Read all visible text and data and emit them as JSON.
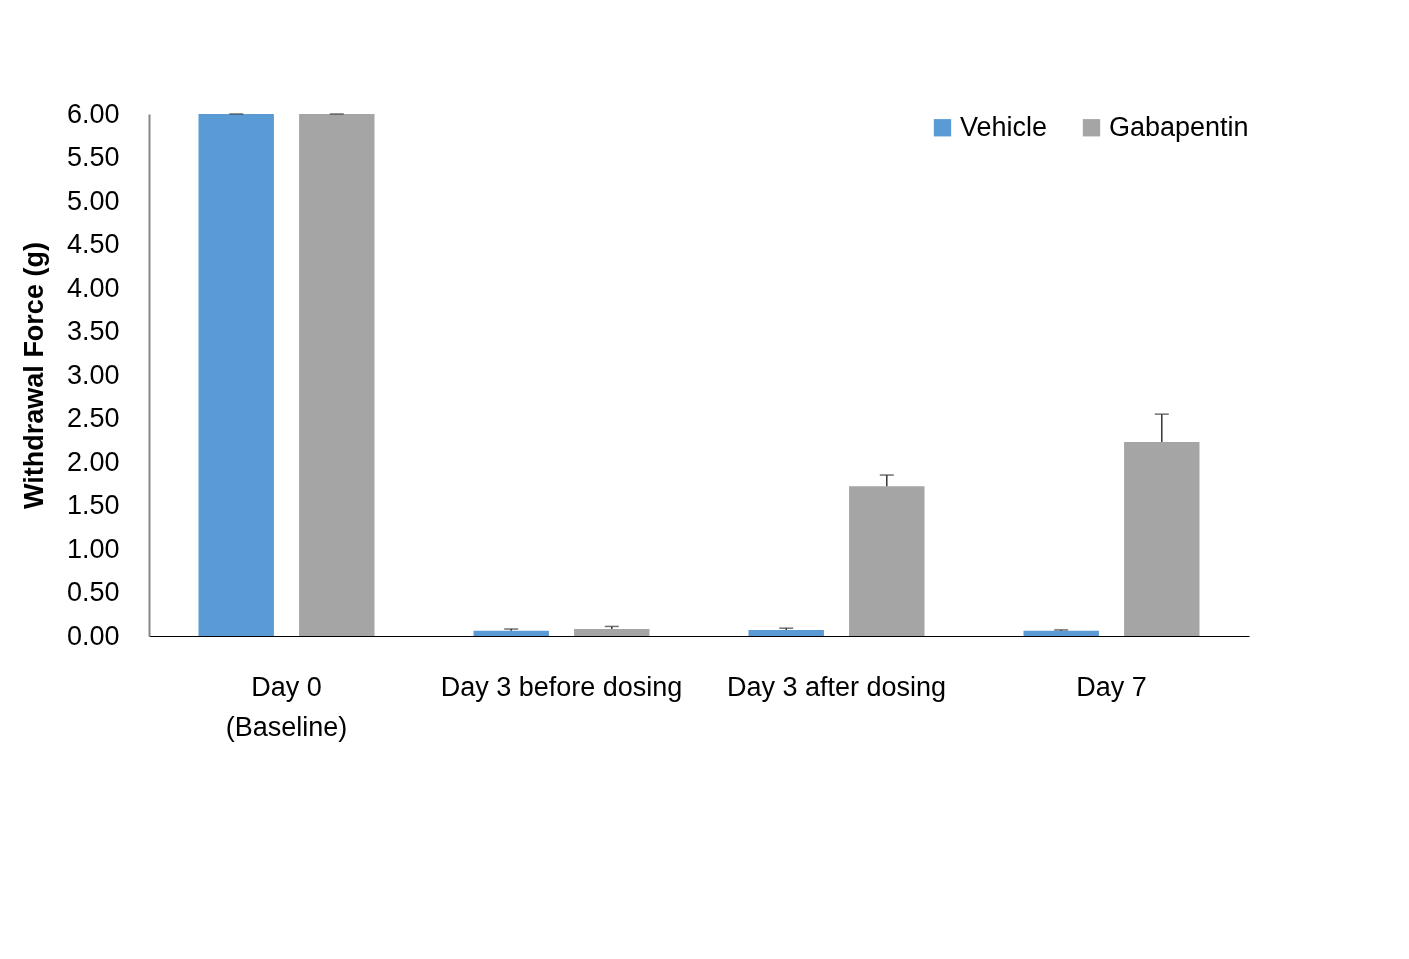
{
  "chart_data": {
    "type": "bar",
    "ylabel": "Withdrawal Force (g)",
    "categories": [
      "Day 0\n(Baseline)",
      "Day 3 before dosing",
      "Day 3 after dosing",
      "Day 7"
    ],
    "series": [
      {
        "name": "Vehicle",
        "color": "#5b9bd5",
        "values": [
          6.0,
          0.06,
          0.07,
          0.06
        ],
        "errors": [
          [
            6.0,
            6.0
          ],
          [
            0.06,
            0.08
          ],
          [
            0.07,
            0.09
          ],
          [
            0.06,
            0.07
          ]
        ]
      },
      {
        "name": "Gabapentin",
        "color": "#a5a5a5",
        "values": [
          6.0,
          0.08,
          1.72,
          2.23
        ],
        "errors": [
          [
            6.0,
            6.0
          ],
          [
            0.08,
            0.11
          ],
          [
            1.72,
            1.85
          ],
          [
            2.23,
            2.55
          ]
        ]
      }
    ],
    "ylim": [
      0,
      6
    ],
    "yticks": [
      {
        "value": 0,
        "label": "0.00"
      },
      {
        "value": 0.5,
        "label": "0.50"
      },
      {
        "value": 1,
        "label": "1.00"
      },
      {
        "value": 1.5,
        "label": "1.50"
      },
      {
        "value": 2,
        "label": "2.00"
      },
      {
        "value": 2.5,
        "label": "2.50"
      },
      {
        "value": 3,
        "label": "3.00"
      },
      {
        "value": 3.5,
        "label": "3.50"
      },
      {
        "value": 4,
        "label": "4.00"
      },
      {
        "value": 4.5,
        "label": "4.50"
      },
      {
        "value": 5,
        "label": "5.00"
      },
      {
        "value": 5.5,
        "label": "5.50"
      },
      {
        "value": 6,
        "label": "6.00"
      }
    ],
    "grid": false,
    "legend": "top right"
  }
}
